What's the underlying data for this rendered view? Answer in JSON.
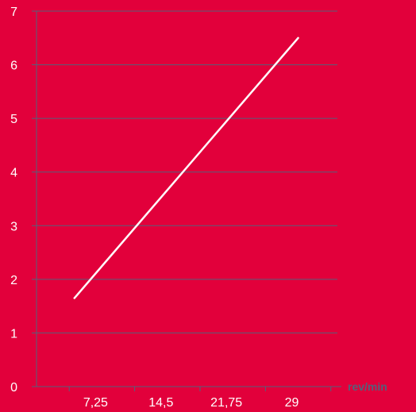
{
  "chart_data": {
    "type": "line",
    "xlabel": "rev/min",
    "ylabel": "",
    "x_ticks": [
      "7,25",
      "14,5",
      "21,75",
      "29"
    ],
    "y_ticks": [
      "0",
      "1",
      "2",
      "3",
      "4",
      "5",
      "6",
      "7"
    ],
    "xlim": [
      0,
      33.35
    ],
    "ylim": [
      0,
      7
    ],
    "grid": "horizontal",
    "series": [
      {
        "x": [
          4.2,
          29
        ],
        "y": [
          1.65,
          6.5
        ]
      }
    ],
    "colors": {
      "background": "#e2003b",
      "line": "#ffffff",
      "grid": "#56607a",
      "axis_title": "#56607a",
      "tick_label": "#ffffff"
    }
  }
}
